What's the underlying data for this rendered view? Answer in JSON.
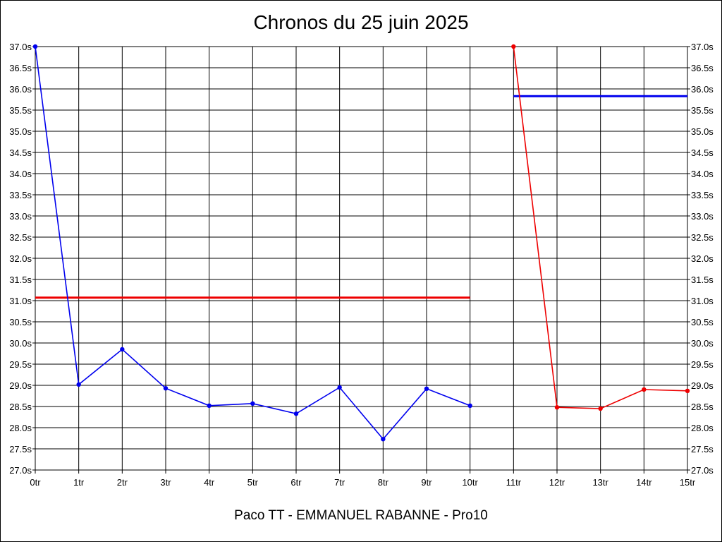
{
  "chart_data": {
    "type": "line",
    "title": "Chronos du 25 juin 2025",
    "footer": "Paco TT - EMMANUEL RABANNE - Pro10",
    "x_ticks": [
      "0tr",
      "1tr",
      "2tr",
      "3tr",
      "4tr",
      "5tr",
      "6tr",
      "7tr",
      "8tr",
      "9tr",
      "10tr",
      "11tr",
      "12tr",
      "13tr",
      "14tr",
      "15tr"
    ],
    "y_ticks": [
      "27.0s",
      "27.5s",
      "28.0s",
      "28.5s",
      "29.0s",
      "29.5s",
      "30.0s",
      "30.5s",
      "31.0s",
      "31.5s",
      "32.0s",
      "32.5s",
      "33.0s",
      "33.5s",
      "34.0s",
      "34.5s",
      "35.0s",
      "35.5s",
      "36.0s",
      "36.5s",
      "37.0s"
    ],
    "xlim": [
      0,
      15
    ],
    "ylim": [
      27.0,
      37.0
    ],
    "grid": true,
    "y_axis_right": true,
    "series": [
      {
        "color": "#0000ee",
        "x": [
          0,
          1,
          2,
          3,
          4,
          5,
          6,
          7,
          8,
          9,
          10
        ],
        "values": [
          37.0,
          29.02,
          29.85,
          28.93,
          28.52,
          28.57,
          28.33,
          28.95,
          27.73,
          28.92,
          28.52
        ]
      },
      {
        "color": "#ee0000",
        "x": [
          11,
          12,
          13,
          14,
          15
        ],
        "values": [
          37.0,
          28.48,
          28.45,
          28.9,
          28.87
        ]
      }
    ],
    "reference_lines": [
      {
        "color": "#ee0000",
        "x": [
          0,
          10
        ],
        "value": 31.07
      },
      {
        "color": "#0000ee",
        "x": [
          11,
          15
        ],
        "value": 35.83
      }
    ]
  }
}
